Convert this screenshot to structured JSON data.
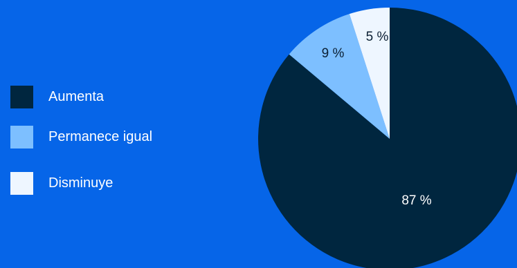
{
  "chart_data": {
    "type": "pie",
    "title": "",
    "legend_position": "left",
    "slices": [
      {
        "label": "Aumenta",
        "value": 87,
        "display": "87 %",
        "color": "#00263f",
        "text_color": "#ffffff"
      },
      {
        "label": "Permanece igual",
        "value": 9,
        "display": "9 %",
        "color": "#7dbfff",
        "text_color": "#0b1f33"
      },
      {
        "label": "Disminuye",
        "value": 5,
        "display": "5 %",
        "color": "#eef6ff",
        "text_color": "#0b1f33"
      }
    ]
  },
  "colors": {
    "background": "#0665e8",
    "legend_text": "#ffffff"
  }
}
